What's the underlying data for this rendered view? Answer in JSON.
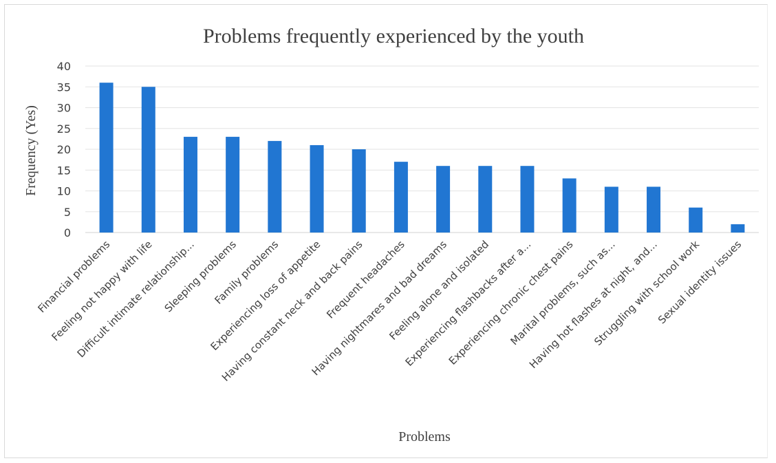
{
  "chart_data": {
    "type": "bar",
    "title": "Problems frequently experienced by the youth",
    "xlabel": "Problems",
    "ylabel": "Frequency (Yes)",
    "ylim": [
      0,
      40
    ],
    "yticks": [
      0,
      5,
      10,
      15,
      20,
      25,
      30,
      35,
      40
    ],
    "grid": true,
    "legend": "none",
    "bar_color": "#2176d2",
    "categories": [
      "Financial problems",
      "Feeling not happy with life",
      "Difficult intimate relationship...",
      "Sleeping problems",
      "Family problems",
      "Experiencing loss of appetite",
      "Having constant neck and back pains",
      "Frequent headaches",
      "Having nightmares and bad dreams",
      "Feeling alone and isolated",
      "Experiencing flashbacks after a...",
      "Experiencing chronic chest pains",
      "Marital problems, such as...",
      "Having hot flashes at night, and...",
      "Struggling with school work",
      "Sexual identity issues"
    ],
    "values": [
      36,
      35,
      23,
      23,
      22,
      21,
      20,
      17,
      16,
      16,
      16,
      13,
      11,
      11,
      6,
      2
    ]
  }
}
